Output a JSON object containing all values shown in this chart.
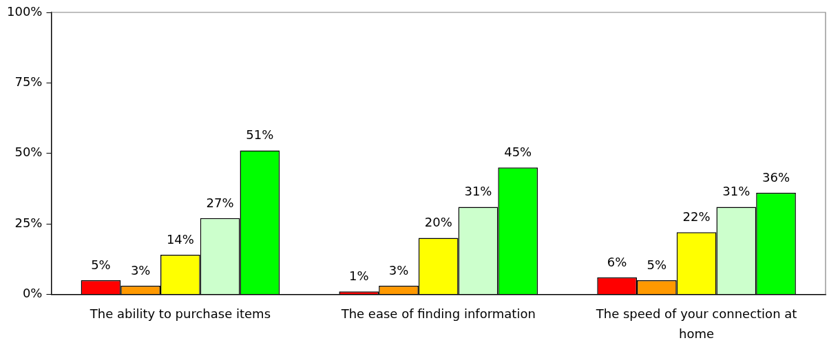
{
  "chart_data": {
    "type": "bar",
    "categories": [
      "The ability to purchase items",
      "The ease of finding information",
      "The speed of your connection at home"
    ],
    "series": [
      {
        "color": "#ff0000",
        "values": [
          5,
          1,
          6
        ],
        "value_labels": [
          "5%",
          "1%",
          "6%"
        ]
      },
      {
        "color": "#ff9900",
        "values": [
          3,
          3,
          5
        ],
        "value_labels": [
          "3%",
          "3%",
          "5%"
        ]
      },
      {
        "color": "#ffff00",
        "values": [
          14,
          20,
          22
        ],
        "value_labels": [
          "14%",
          "20%",
          "22%"
        ]
      },
      {
        "color": "#ccffcc",
        "values": [
          27,
          31,
          31
        ],
        "value_labels": [
          "27%",
          "31%",
          "31%"
        ]
      },
      {
        "color": "#00ff00",
        "values": [
          51,
          45,
          36
        ],
        "value_labels": [
          "51%",
          "45%",
          "36%"
        ]
      }
    ],
    "ylim": [
      0,
      100
    ],
    "yticks": [
      {
        "value": 0,
        "label": "0%"
      },
      {
        "value": 25,
        "label": "25%"
      },
      {
        "value": 50,
        "label": "50%"
      },
      {
        "value": 75,
        "label": "75%"
      },
      {
        "value": 100,
        "label": "100%"
      }
    ]
  }
}
